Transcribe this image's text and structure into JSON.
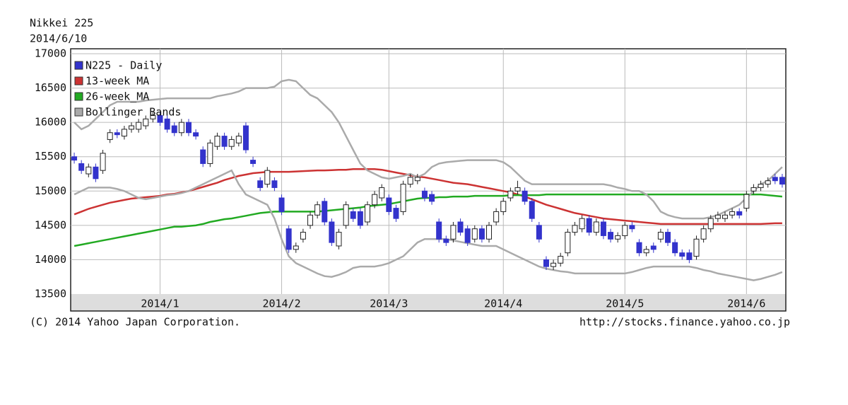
{
  "chart_data": {
    "type": "candlestick",
    "title": "Nikkei 225",
    "subtitle": "2014/6/10",
    "footer": "(C) 2014 Yahoo Japan Corporation.",
    "source": "http://stocks.finance.yahoo.co.jp",
    "ylim": [
      13500,
      17000
    ],
    "yticks": [
      13500,
      14000,
      14500,
      15000,
      15500,
      16000,
      16500,
      17000
    ],
    "grid": true,
    "legend": "top-left",
    "categories": [
      null,
      null,
      null,
      null,
      null,
      null,
      null,
      null,
      null,
      null,
      null,
      null,
      "2014/1",
      null,
      null,
      null,
      null,
      null,
      null,
      null,
      null,
      null,
      null,
      null,
      null,
      null,
      null,
      null,
      null,
      "2014/2",
      null,
      null,
      null,
      null,
      null,
      null,
      null,
      null,
      null,
      null,
      null,
      null,
      null,
      null,
      "2014/3",
      null,
      null,
      null,
      null,
      null,
      null,
      null,
      null,
      null,
      null,
      null,
      null,
      null,
      null,
      null,
      "2014/4",
      null,
      null,
      null,
      null,
      null,
      null,
      null,
      null,
      null,
      null,
      null,
      null,
      null,
      null,
      null,
      null,
      "2014/5",
      null,
      null,
      null,
      null,
      null,
      null,
      null,
      null,
      null,
      null,
      null,
      null,
      null,
      null,
      null,
      null,
      "2014/6",
      null,
      null,
      null,
      null,
      null
    ],
    "candles": {
      "name": "N225 - Daily",
      "color": "#3333cc",
      "open": [
        15500,
        15400,
        15250,
        15350,
        15300,
        15750,
        15850,
        15800,
        15900,
        15900,
        15950,
        16050,
        16100,
        16050,
        15950,
        15850,
        16000,
        15850,
        15600,
        15400,
        15650,
        15800,
        15650,
        15700,
        15950,
        15450,
        15150,
        15100,
        15150,
        14900,
        14450,
        14150,
        14300,
        14500,
        14650,
        14850,
        14550,
        14200,
        14500,
        14700,
        14700,
        14550,
        14800,
        14900,
        14900,
        14750,
        14700,
        15100,
        15150,
        15000,
        14950,
        14550,
        14300,
        14300,
        14550,
        14450,
        14300,
        14450,
        14300,
        14550,
        14700,
        14900,
        15000,
        15000,
        14850,
        14500,
        14000,
        13900,
        13950,
        14100,
        14400,
        14450,
        14600,
        14400,
        14550,
        14400,
        14300,
        14350,
        14500,
        14250,
        14100,
        14200,
        14300,
        14400,
        14250,
        14100,
        14100,
        14050,
        14300,
        14450,
        14600,
        14600,
        14650,
        14700,
        14750,
        15000,
        15050,
        15100,
        15200,
        15200
      ],
      "high": [
        15560,
        15450,
        15400,
        15400,
        15600,
        15900,
        15900,
        15950,
        16000,
        16050,
        16100,
        16150,
        16150,
        16100,
        16000,
        16050,
        16050,
        15900,
        15650,
        15750,
        15850,
        15850,
        15800,
        15850,
        16000,
        15500,
        15200,
        15350,
        15200,
        14950,
        14500,
        14250,
        14450,
        14700,
        14850,
        14900,
        14600,
        14450,
        14850,
        14750,
        14750,
        14850,
        15000,
        15100,
        14950,
        14800,
        15150,
        15250,
        15250,
        15050,
        15000,
        14600,
        14350,
        14550,
        14600,
        14500,
        14500,
        14500,
        14550,
        14750,
        14900,
        15050,
        15150,
        15050,
        14900,
        14550,
        14050,
        14000,
        14100,
        14450,
        14550,
        14650,
        14650,
        14600,
        14600,
        14450,
        14400,
        14550,
        14550,
        14300,
        14200,
        14250,
        14450,
        14450,
        14300,
        14150,
        14150,
        14350,
        14500,
        14650,
        14700,
        14700,
        14750,
        14750,
        15000,
        15100,
        15150,
        15200,
        15250,
        15250
      ],
      "low": [
        15400,
        15250,
        15200,
        15130,
        15250,
        15700,
        15770,
        15750,
        15850,
        15850,
        15900,
        16000,
        15950,
        15850,
        15800,
        15800,
        15800,
        15750,
        15350,
        15350,
        15600,
        15600,
        15600,
        15650,
        15550,
        15350,
        15000,
        15050,
        15000,
        14650,
        14100,
        14100,
        14250,
        14450,
        14600,
        14500,
        14200,
        14150,
        14450,
        14550,
        14450,
        14500,
        14750,
        14850,
        14650,
        14550,
        14650,
        15050,
        15100,
        14850,
        14800,
        14250,
        14200,
        14250,
        14350,
        14200,
        14250,
        14250,
        14250,
        14500,
        14650,
        14850,
        14950,
        14800,
        14550,
        14250,
        13850,
        13850,
        13900,
        14050,
        14350,
        14400,
        14350,
        14350,
        14300,
        14250,
        14250,
        14300,
        14400,
        14050,
        14050,
        14100,
        14250,
        14200,
        14050,
        14000,
        13950,
        14000,
        14250,
        14400,
        14550,
        14550,
        14600,
        14600,
        14700,
        14950,
        15000,
        15050,
        15100,
        15050
      ],
      "close": [
        15450,
        15300,
        15350,
        15180,
        15550,
        15850,
        15820,
        15900,
        15950,
        16000,
        16050,
        16100,
        16000,
        15900,
        15850,
        16000,
        15850,
        15800,
        15400,
        15700,
        15800,
        15650,
        15750,
        15800,
        15600,
        15400,
        15050,
        15300,
        15050,
        14700,
        14150,
        14200,
        14400,
        14650,
        14800,
        14550,
        14250,
        14400,
        14800,
        14600,
        14500,
        14800,
        14950,
        15050,
        14700,
        14600,
        15100,
        15200,
        15200,
        14900,
        14850,
        14300,
        14250,
        14500,
        14400,
        14250,
        14450,
        14300,
        14500,
        14700,
        14850,
        15000,
        15050,
        14850,
        14600,
        14300,
        13900,
        13950,
        14050,
        14400,
        14500,
        14600,
        14400,
        14550,
        14350,
        14300,
        14350,
        14500,
        14450,
        14100,
        14150,
        14150,
        14400,
        14250,
        14100,
        14050,
        14000,
        14300,
        14450,
        14600,
        14650,
        14650,
        14700,
        14650,
        14950,
        15050,
        15100,
        15150,
        15150,
        15100
      ]
    },
    "series": [
      {
        "name": "13-week MA",
        "color": "#cc3333",
        "values": [
          14660,
          14700,
          14740,
          14770,
          14800,
          14830,
          14850,
          14870,
          14890,
          14900,
          14910,
          14920,
          14930,
          14950,
          14960,
          14980,
          15000,
          15030,
          15060,
          15090,
          15120,
          15160,
          15190,
          15220,
          15240,
          15260,
          15270,
          15280,
          15280,
          15280,
          15280,
          15285,
          15290,
          15295,
          15300,
          15300,
          15305,
          15310,
          15310,
          15320,
          15320,
          15320,
          15320,
          15310,
          15290,
          15270,
          15250,
          15230,
          15210,
          15200,
          15180,
          15160,
          15140,
          15120,
          15110,
          15100,
          15080,
          15060,
          15040,
          15020,
          15000,
          14980,
          14950,
          14920,
          14880,
          14840,
          14800,
          14770,
          14740,
          14710,
          14680,
          14660,
          14640,
          14620,
          14600,
          14590,
          14580,
          14570,
          14560,
          14550,
          14540,
          14530,
          14520,
          14520,
          14520,
          14520,
          14520,
          14520,
          14520,
          14520,
          14520,
          14520,
          14520,
          14520,
          14520,
          14520,
          14520,
          14525,
          14530,
          14530
        ]
      },
      {
        "name": "26-week_MA",
        "color": "#22aa22",
        "values": [
          14200,
          14220,
          14240,
          14260,
          14280,
          14300,
          14320,
          14340,
          14360,
          14380,
          14400,
          14420,
          14440,
          14460,
          14480,
          14480,
          14490,
          14500,
          14520,
          14550,
          14570,
          14590,
          14600,
          14620,
          14640,
          14660,
          14680,
          14690,
          14700,
          14700,
          14700,
          14700,
          14700,
          14700,
          14700,
          14710,
          14720,
          14730,
          14740,
          14750,
          14760,
          14780,
          14790,
          14800,
          14810,
          14830,
          14850,
          14870,
          14890,
          14900,
          14900,
          14910,
          14910,
          14920,
          14920,
          14920,
          14930,
          14930,
          14930,
          14930,
          14930,
          14940,
          14940,
          14940,
          14940,
          14940,
          14950,
          14950,
          14950,
          14950,
          14950,
          14950,
          14950,
          14950,
          14950,
          14950,
          14950,
          14950,
          14950,
          14950,
          14950,
          14950,
          14950,
          14950,
          14950,
          14950,
          14950,
          14950,
          14950,
          14950,
          14950,
          14950,
          14950,
          14950,
          14950,
          14950,
          14950,
          14940,
          14930,
          14920
        ]
      },
      {
        "name": "Bollinger Bands",
        "color": "#aaaaaa",
        "values": [
          16000,
          15900,
          15950,
          16050,
          16150,
          16250,
          16300,
          16300,
          16300,
          16300,
          16320,
          16330,
          16340,
          16350,
          16350,
          16350,
          16350,
          16350,
          16350,
          16350,
          16380,
          16400,
          16420,
          16450,
          16500,
          16500,
          16500,
          16500,
          16520,
          16600,
          16620,
          16600,
          16500,
          16400,
          16350,
          16250,
          16150,
          16000,
          15800,
          15600,
          15400,
          15300,
          15250,
          15200,
          15180,
          15200,
          15220,
          15250,
          15200,
          15250,
          15350,
          15400,
          15420,
          15430,
          15440,
          15450,
          15450,
          15450,
          15450,
          15450,
          15420,
          15350,
          15250,
          15150,
          15100,
          15100,
          15100,
          15100,
          15100,
          15100,
          15100,
          15100,
          15100,
          15100,
          15100,
          15080,
          15050,
          15030,
          15000,
          15000,
          14950,
          14850,
          14700,
          14650,
          14620,
          14600,
          14600,
          14600,
          14600,
          14620,
          14650,
          14700,
          14750,
          14800,
          14900,
          15000,
          15100,
          15150,
          15250,
          15350
        ],
        "lower": [
          14950,
          15000,
          15050,
          15050,
          15050,
          15050,
          15030,
          15000,
          14950,
          14900,
          14880,
          14900,
          14920,
          14940,
          14950,
          14970,
          15000,
          15050,
          15100,
          15150,
          15200,
          15250,
          15300,
          15100,
          14950,
          14900,
          14850,
          14800,
          14600,
          14300,
          14050,
          13950,
          13900,
          13850,
          13800,
          13760,
          13750,
          13780,
          13820,
          13880,
          13900,
          13900,
          13900,
          13920,
          13950,
          14000,
          14050,
          14150,
          14250,
          14300,
          14300,
          14300,
          14300,
          14280,
          14260,
          14240,
          14220,
          14200,
          14200,
          14200,
          14150,
          14100,
          14050,
          14000,
          13950,
          13900,
          13870,
          13850,
          13830,
          13820,
          13800,
          13800,
          13800,
          13800,
          13800,
          13800,
          13800,
          13800,
          13820,
          13850,
          13880,
          13900,
          13900,
          13900,
          13900,
          13900,
          13900,
          13880,
          13850,
          13830,
          13800,
          13780,
          13760,
          13740,
          13720,
          13700,
          13720,
          13750,
          13780,
          13820
        ]
      }
    ]
  }
}
